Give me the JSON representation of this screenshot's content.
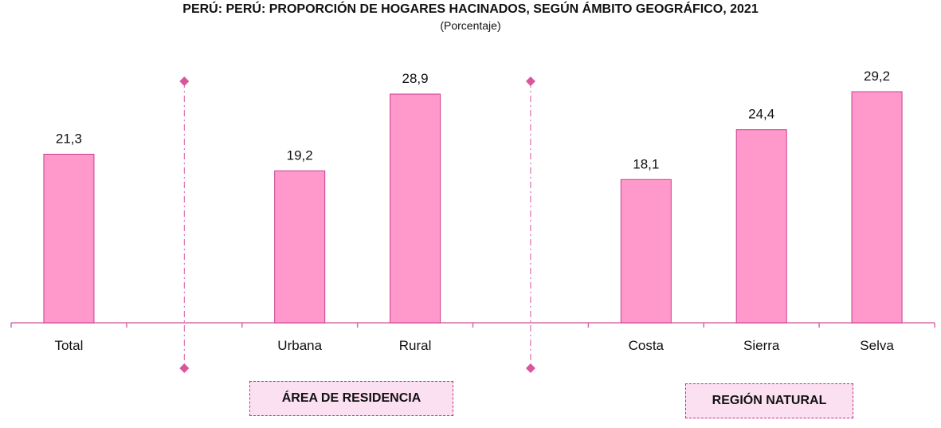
{
  "title": "PERÚ: PERÚ: PROPORCIÓN DE HOGARES HACINADOS, SEGÚN ÁMBITO GEOGRÁFICO, 2021",
  "subtitle": "(Porcentaje)",
  "group_labels": {
    "residence": "ÁREA DE RESIDENCIA",
    "region": "REGIÓN NATURAL"
  },
  "colors": {
    "bar_fill": "#ff99cc",
    "bar_stroke": "#cc3c8c",
    "separator": "#d9559c",
    "axis": "#d96ba8"
  },
  "chart_data": {
    "type": "bar",
    "categories": [
      "Total",
      "",
      "Urbana",
      "Rural",
      "",
      "Costa",
      "Sierra",
      "Selva"
    ],
    "values": [
      21.3,
      null,
      19.2,
      28.9,
      null,
      18.1,
      24.4,
      29.2
    ],
    "data_labels": [
      "21,3",
      "",
      "19,2",
      "28,9",
      "",
      "18,1",
      "24,4",
      "29,2"
    ],
    "title": "PERÚ: PERÚ: PROPORCIÓN DE HOGARES HACINADOS, SEGÚN ÁMBITO GEOGRÁFICO, 2021",
    "subtitle": "(Porcentaje)",
    "ylim": [
      0,
      40
    ],
    "grid": false,
    "legend": false
  }
}
